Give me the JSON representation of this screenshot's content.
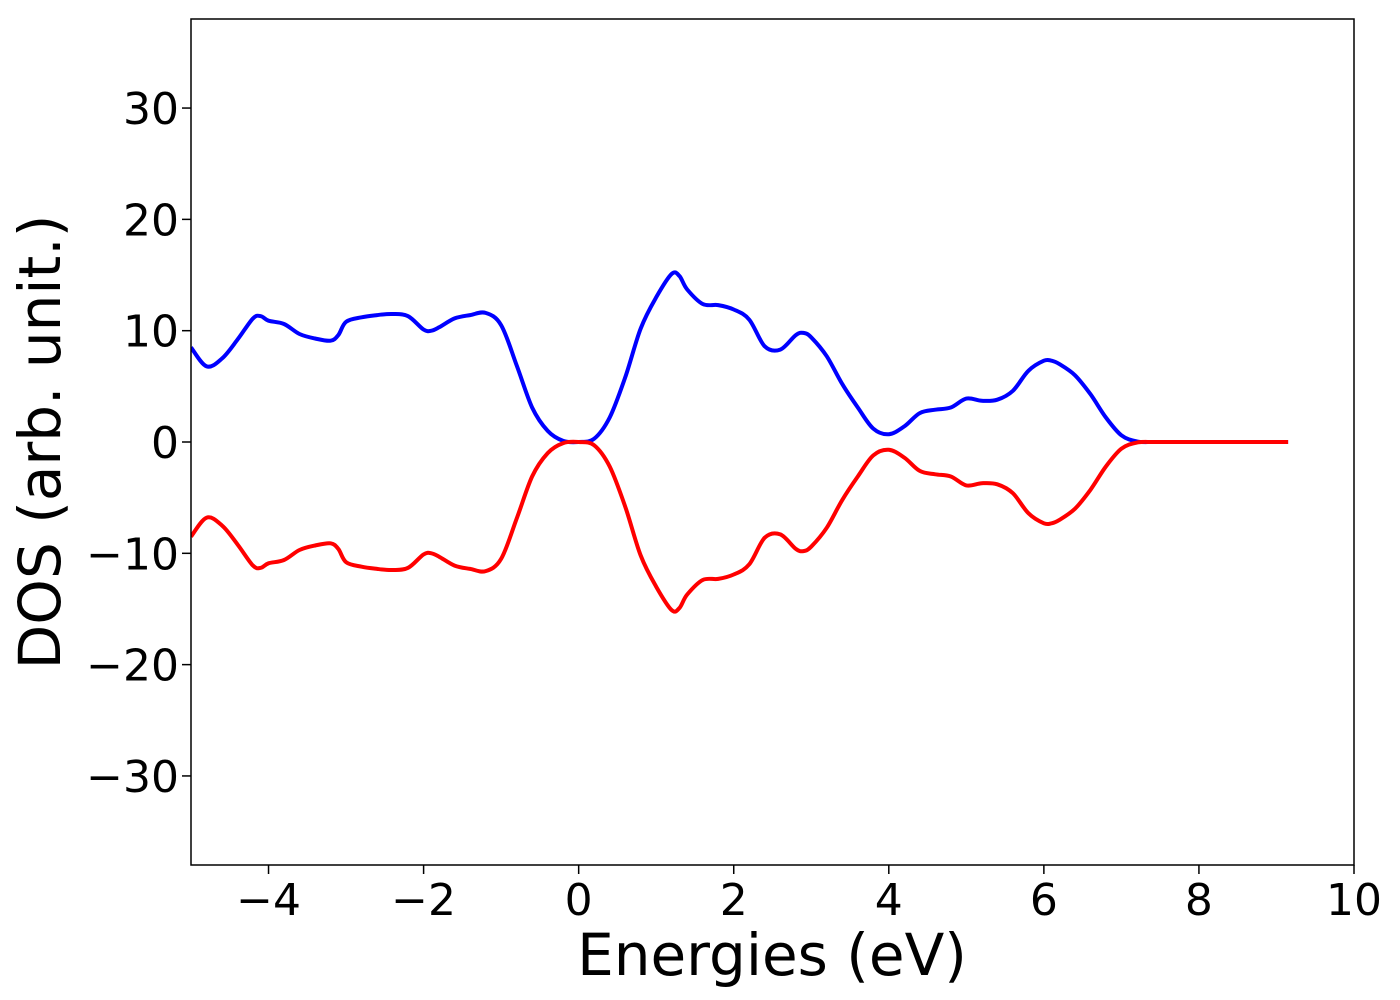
{
  "chart_data": {
    "type": "line",
    "title": "",
    "xlabel": "Energies (eV)",
    "ylabel": "DOS (arb. unit.)",
    "xlim": [
      -5,
      10
    ],
    "ylim": [
      -38,
      38
    ],
    "xticks": [
      -4,
      -2,
      0,
      2,
      4,
      6,
      8,
      10
    ],
    "xtick_labels": [
      "−4",
      "−2",
      "0",
      "2",
      "4",
      "6",
      "8",
      "10"
    ],
    "yticks": [
      30,
      20,
      10,
      0,
      -10,
      -20,
      -30
    ],
    "ytick_labels": [
      "30",
      "20",
      "10",
      "0",
      "−10",
      "−20",
      "−30"
    ],
    "grid": false,
    "legend": "none",
    "x": [
      -5.0,
      -4.8,
      -4.6,
      -4.4,
      -4.2,
      -4.1,
      -4.0,
      -3.8,
      -3.6,
      -3.4,
      -3.2,
      -3.1,
      -3.0,
      -2.8,
      -2.6,
      -2.4,
      -2.2,
      -2.0,
      -1.9,
      -1.8,
      -1.6,
      -1.4,
      -1.2,
      -1.0,
      -0.8,
      -0.6,
      -0.4,
      -0.2,
      0.0,
      0.2,
      0.4,
      0.6,
      0.8,
      1.0,
      1.2,
      1.3,
      1.4,
      1.6,
      1.8,
      2.0,
      2.2,
      2.4,
      2.6,
      2.8,
      2.9,
      3.0,
      3.2,
      3.4,
      3.6,
      3.8,
      4.0,
      4.2,
      4.4,
      4.6,
      4.8,
      5.0,
      5.2,
      5.4,
      5.6,
      5.8,
      6.0,
      6.1,
      6.2,
      6.4,
      6.6,
      6.8,
      7.0,
      7.2,
      7.4,
      7.6,
      7.8,
      8.0,
      8.2,
      8.4,
      8.6,
      8.8,
      9.0,
      9.15
    ],
    "series": [
      {
        "color": "#0000ff",
        "values": [
          8.5,
          6.8,
          7.5,
          9.2,
          11.1,
          11.3,
          10.9,
          10.6,
          9.7,
          9.3,
          9.1,
          9.6,
          10.8,
          11.2,
          11.4,
          11.5,
          11.3,
          10.1,
          10.0,
          10.3,
          11.1,
          11.4,
          11.6,
          10.5,
          6.9,
          3.1,
          1.0,
          0.1,
          0.0,
          0.3,
          2.2,
          5.8,
          10.2,
          13.0,
          15.1,
          14.9,
          13.7,
          12.4,
          12.3,
          11.9,
          11.0,
          8.6,
          8.3,
          9.6,
          9.8,
          9.4,
          7.7,
          5.2,
          3.1,
          1.2,
          0.7,
          1.4,
          2.6,
          2.9,
          3.1,
          3.9,
          3.7,
          3.8,
          4.6,
          6.4,
          7.3,
          7.3,
          7.0,
          6.0,
          4.3,
          2.2,
          0.6,
          0.05,
          0.0,
          0.0,
          0.0,
          0.0,
          0.0,
          0.0,
          0.0,
          0.0,
          0.0,
          0.0
        ]
      },
      {
        "color": "#ff0000",
        "values": [
          -8.5,
          -6.8,
          -7.5,
          -9.2,
          -11.1,
          -11.3,
          -10.9,
          -10.6,
          -9.7,
          -9.3,
          -9.1,
          -9.6,
          -10.8,
          -11.2,
          -11.4,
          -11.5,
          -11.3,
          -10.1,
          -10.0,
          -10.3,
          -11.1,
          -11.4,
          -11.6,
          -10.5,
          -6.9,
          -3.1,
          -1.0,
          -0.1,
          0.0,
          -0.3,
          -2.2,
          -5.8,
          -10.2,
          -13.0,
          -15.1,
          -14.9,
          -13.7,
          -12.4,
          -12.3,
          -11.9,
          -11.0,
          -8.6,
          -8.3,
          -9.6,
          -9.8,
          -9.4,
          -7.7,
          -5.2,
          -3.1,
          -1.2,
          -0.7,
          -1.4,
          -2.6,
          -2.9,
          -3.1,
          -3.9,
          -3.7,
          -3.8,
          -4.6,
          -6.4,
          -7.3,
          -7.3,
          -7.0,
          -6.0,
          -4.3,
          -2.2,
          -0.6,
          -0.05,
          0.0,
          0.0,
          0.0,
          0.0,
          0.0,
          0.0,
          0.0,
          0.0,
          0.0,
          0.0
        ]
      }
    ]
  }
}
